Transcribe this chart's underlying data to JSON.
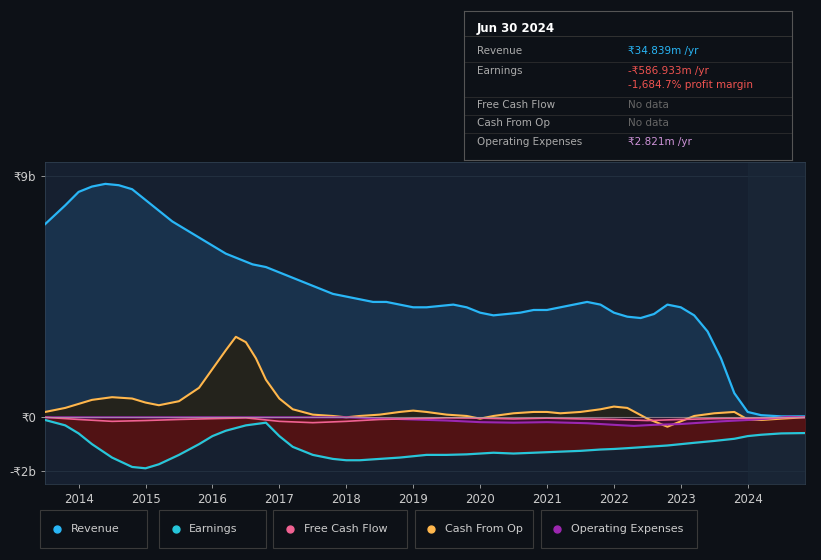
{
  "bg_color": "#0d1117",
  "chart_area_color": "#162030",
  "title_box_bg": "#0a0e14",
  "ylim": [
    -2500,
    9500
  ],
  "ytick_top": 9000,
  "ytick_top_label": "₹9b",
  "ytick_zero": 0,
  "ytick_zero_label": "₹0",
  "ytick_bottom": -2000,
  "ytick_bottom_label": "-₹2b",
  "xlim_start": 2013.5,
  "xlim_end": 2024.85,
  "xticks": [
    2014,
    2015,
    2016,
    2017,
    2018,
    2019,
    2020,
    2021,
    2022,
    2023,
    2024
  ],
  "shade_start": 2024.0,
  "revenue": {
    "x": [
      2013.5,
      2013.8,
      2014.0,
      2014.2,
      2014.4,
      2014.6,
      2014.8,
      2015.0,
      2015.2,
      2015.4,
      2015.6,
      2015.8,
      2016.0,
      2016.2,
      2016.4,
      2016.6,
      2016.8,
      2017.0,
      2017.2,
      2017.4,
      2017.6,
      2017.8,
      2018.0,
      2018.2,
      2018.4,
      2018.6,
      2018.8,
      2019.0,
      2019.2,
      2019.4,
      2019.6,
      2019.8,
      2020.0,
      2020.2,
      2020.4,
      2020.6,
      2020.8,
      2021.0,
      2021.2,
      2021.4,
      2021.6,
      2021.8,
      2022.0,
      2022.2,
      2022.4,
      2022.6,
      2022.8,
      2023.0,
      2023.2,
      2023.4,
      2023.6,
      2023.8,
      2024.0,
      2024.2,
      2024.5,
      2024.85
    ],
    "y": [
      7200,
      7900,
      8400,
      8600,
      8700,
      8650,
      8500,
      8100,
      7700,
      7300,
      7000,
      6700,
      6400,
      6100,
      5900,
      5700,
      5600,
      5400,
      5200,
      5000,
      4800,
      4600,
      4500,
      4400,
      4300,
      4300,
      4200,
      4100,
      4100,
      4150,
      4200,
      4100,
      3900,
      3800,
      3850,
      3900,
      4000,
      4000,
      4100,
      4200,
      4300,
      4200,
      3900,
      3750,
      3700,
      3850,
      4200,
      4100,
      3800,
      3200,
      2200,
      900,
      200,
      80,
      35,
      35
    ],
    "line_color": "#29b6f6",
    "fill_color": "#1a3550",
    "fill_alpha": 0.9
  },
  "earnings": {
    "x": [
      2013.5,
      2013.8,
      2014.0,
      2014.2,
      2014.5,
      2014.8,
      2015.0,
      2015.2,
      2015.5,
      2015.8,
      2016.0,
      2016.2,
      2016.5,
      2016.8,
      2017.0,
      2017.2,
      2017.5,
      2017.8,
      2018.0,
      2018.2,
      2018.5,
      2018.8,
      2019.0,
      2019.2,
      2019.5,
      2019.8,
      2020.0,
      2020.2,
      2020.5,
      2020.8,
      2021.0,
      2021.2,
      2021.5,
      2021.8,
      2022.0,
      2022.2,
      2022.5,
      2022.8,
      2023.0,
      2023.2,
      2023.5,
      2023.8,
      2024.0,
      2024.2,
      2024.5,
      2024.85
    ],
    "y": [
      -100,
      -300,
      -600,
      -1000,
      -1500,
      -1850,
      -1900,
      -1750,
      -1400,
      -1000,
      -700,
      -500,
      -300,
      -200,
      -700,
      -1100,
      -1400,
      -1550,
      -1600,
      -1600,
      -1550,
      -1500,
      -1450,
      -1400,
      -1400,
      -1380,
      -1350,
      -1320,
      -1350,
      -1320,
      -1300,
      -1280,
      -1250,
      -1200,
      -1180,
      -1150,
      -1100,
      -1050,
      -1000,
      -950,
      -880,
      -800,
      -700,
      -650,
      -600,
      -587
    ],
    "line_color": "#26c6da",
    "fill_color": "#5c1010",
    "fill_alpha": 0.85
  },
  "cash_from_op": {
    "x": [
      2013.5,
      2013.8,
      2014.0,
      2014.2,
      2014.5,
      2014.8,
      2015.0,
      2015.2,
      2015.5,
      2015.8,
      2016.0,
      2016.2,
      2016.35,
      2016.5,
      2016.65,
      2016.8,
      2017.0,
      2017.2,
      2017.5,
      2017.8,
      2018.0,
      2018.2,
      2018.5,
      2018.8,
      2019.0,
      2019.2,
      2019.5,
      2019.8,
      2020.0,
      2020.2,
      2020.5,
      2020.8,
      2021.0,
      2021.2,
      2021.5,
      2021.8,
      2022.0,
      2022.2,
      2022.5,
      2022.8,
      2023.0,
      2023.2,
      2023.5,
      2023.8,
      2024.0,
      2024.2,
      2024.5,
      2024.85
    ],
    "y": [
      200,
      350,
      500,
      650,
      750,
      700,
      550,
      450,
      600,
      1100,
      1800,
      2500,
      3000,
      2800,
      2200,
      1400,
      700,
      300,
      100,
      50,
      0,
      50,
      100,
      200,
      250,
      200,
      100,
      50,
      -50,
      50,
      150,
      200,
      200,
      150,
      200,
      300,
      400,
      350,
      -50,
      -350,
      -150,
      50,
      150,
      200,
      -80,
      -100,
      -50,
      0
    ],
    "line_color": "#ffb74d",
    "fill_color": "#2a1e08",
    "fill_alpha": 0.7
  },
  "free_cash_flow": {
    "x": [
      2013.5,
      2014.0,
      2014.5,
      2015.0,
      2015.5,
      2016.0,
      2016.5,
      2017.0,
      2017.5,
      2018.0,
      2018.5,
      2019.0,
      2019.5,
      2020.0,
      2020.5,
      2021.0,
      2021.5,
      2022.0,
      2022.5,
      2023.0,
      2023.5,
      2024.0,
      2024.5,
      2024.85
    ],
    "y": [
      0,
      -80,
      -150,
      -120,
      -80,
      -50,
      -20,
      -150,
      -200,
      -150,
      -80,
      -50,
      -20,
      -30,
      -60,
      -30,
      -60,
      -80,
      -120,
      -80,
      -50,
      -30,
      -20,
      0
    ],
    "line_color": "#f06292"
  },
  "operating_expenses": {
    "x": [
      2013.5,
      2014.0,
      2015.0,
      2016.0,
      2017.0,
      2018.0,
      2019.0,
      2019.5,
      2020.0,
      2020.5,
      2021.0,
      2021.3,
      2021.6,
      2022.0,
      2022.3,
      2022.6,
      2023.0,
      2023.3,
      2023.6,
      2024.0,
      2024.3,
      2024.6,
      2024.85
    ],
    "y": [
      0,
      0,
      0,
      0,
      0,
      0,
      -80,
      -120,
      -180,
      -200,
      -180,
      -200,
      -220,
      -280,
      -320,
      -280,
      -250,
      -200,
      -150,
      -100,
      -50,
      20,
      0
    ],
    "line_color": "#9c27b0",
    "fill_color": "#2d0a40",
    "fill_alpha": 0.6
  },
  "legend": [
    {
      "label": "Revenue",
      "color": "#29b6f6"
    },
    {
      "label": "Earnings",
      "color": "#26c6da"
    },
    {
      "label": "Free Cash Flow",
      "color": "#f06292"
    },
    {
      "label": "Cash From Op",
      "color": "#ffb74d"
    },
    {
      "label": "Operating Expenses",
      "color": "#9c27b0"
    }
  ],
  "info_box": {
    "title": "Jun 30 2024",
    "rows": [
      {
        "label": "Revenue",
        "value": "₹34.839m /yr",
        "vcolor": "#29b6f6",
        "lcolor": "#aaaaaa"
      },
      {
        "label": "Earnings",
        "value": "-₹586.933m /yr",
        "vcolor": "#ef5350",
        "lcolor": "#aaaaaa"
      },
      {
        "label": "",
        "value": "-1,684.7% profit margin",
        "vcolor": "#ef5350",
        "lcolor": "#aaaaaa"
      },
      {
        "label": "Free Cash Flow",
        "value": "No data",
        "vcolor": "#666666",
        "lcolor": "#aaaaaa"
      },
      {
        "label": "Cash From Op",
        "value": "No data",
        "vcolor": "#666666",
        "lcolor": "#aaaaaa"
      },
      {
        "label": "Operating Expenses",
        "value": "₹2.821m /yr",
        "vcolor": "#ce93d8",
        "lcolor": "#aaaaaa"
      }
    ]
  }
}
